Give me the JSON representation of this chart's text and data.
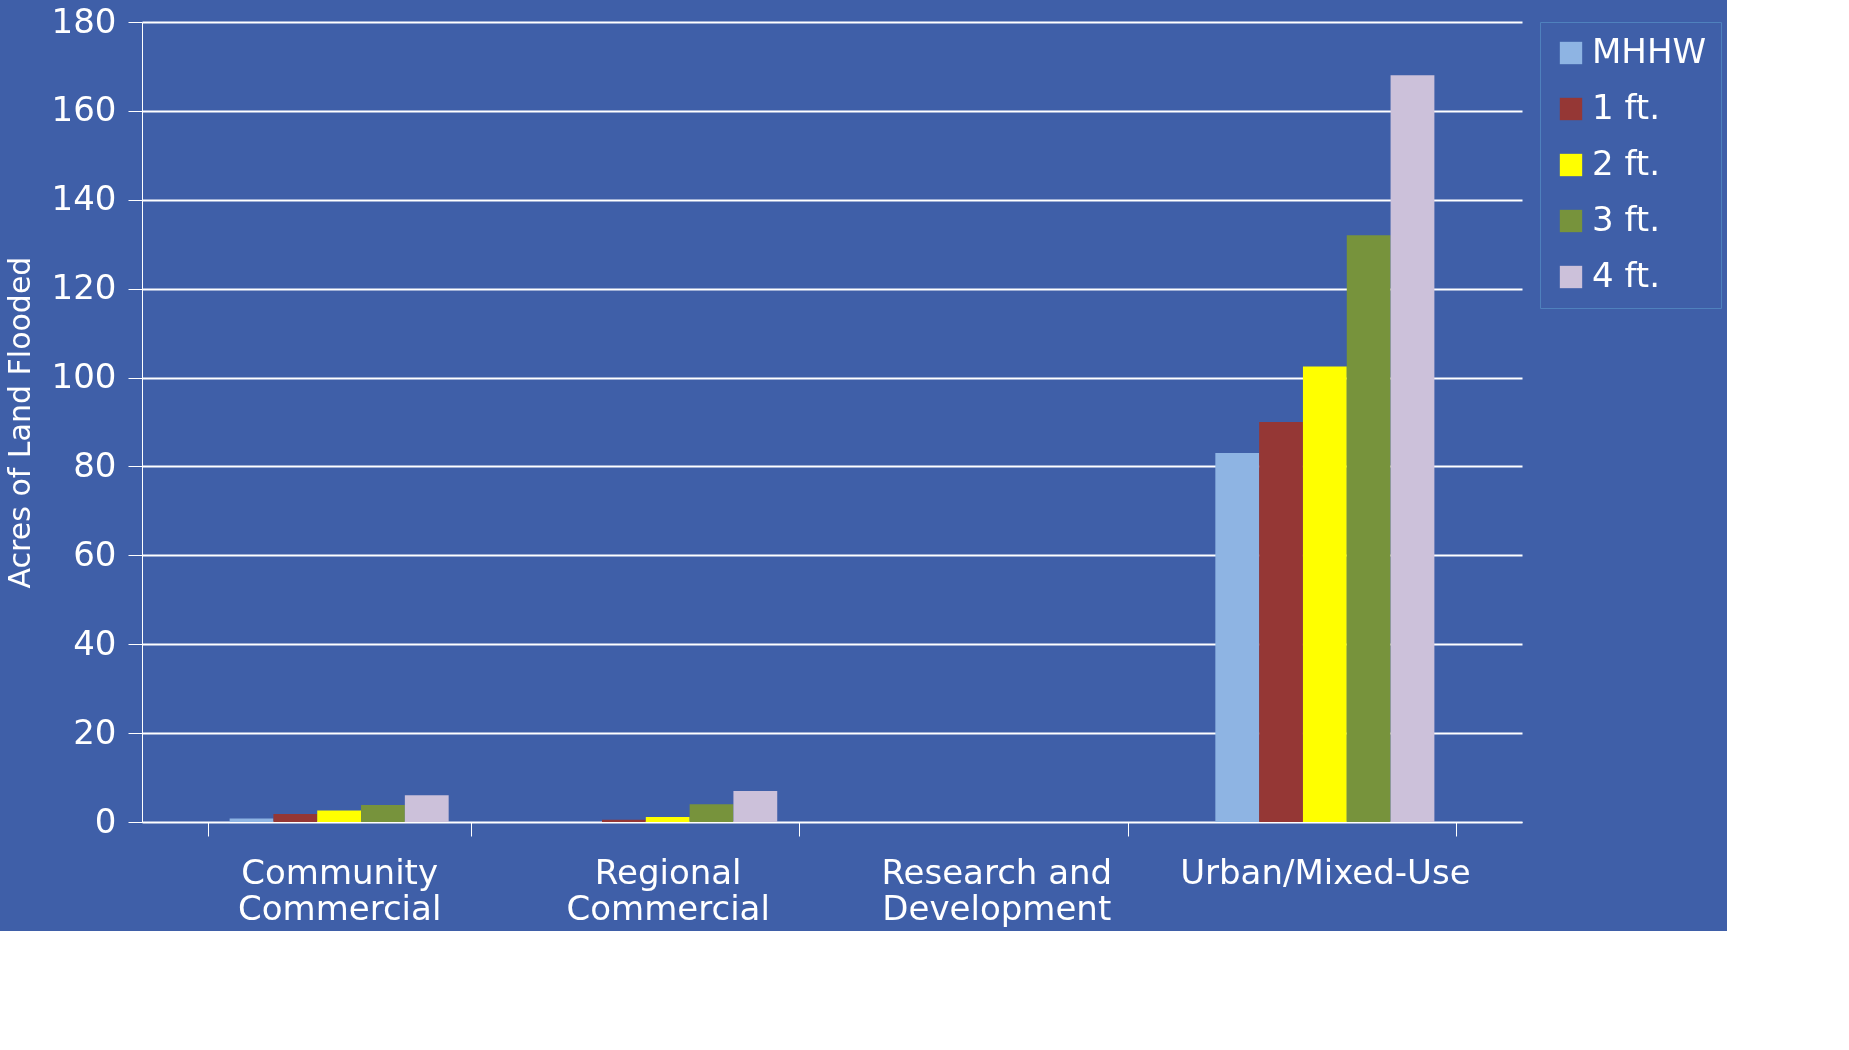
{
  "chart_data": {
    "type": "bar",
    "ylabel": "Acres of Land Flooded",
    "categories": [
      "Community Commercial",
      "Regional Commercial",
      "Research and Development",
      "Urban/Mixed-Use"
    ],
    "series": [
      {
        "name": "MHHW",
        "color": "#8eb4e3",
        "values": [
          0.8,
          null,
          0,
          83
        ]
      },
      {
        "name": "1 ft.",
        "color": "#953735",
        "values": [
          1.8,
          0.5,
          0,
          90
        ]
      },
      {
        "name": "2 ft.",
        "color": "#ffff00",
        "values": [
          2.6,
          1.1,
          0,
          102.5
        ]
      },
      {
        "name": "3 ft.",
        "color": "#77933c",
        "values": [
          3.8,
          4,
          0,
          132
        ]
      },
      {
        "name": "4 ft.",
        "color": "#ccc1da",
        "values": [
          6,
          7,
          0,
          168
        ]
      }
    ],
    "ylim": [
      0,
      180
    ],
    "yticks": [
      0,
      20,
      40,
      60,
      80,
      100,
      120,
      140,
      160,
      180
    ],
    "grid": "y",
    "legend": "right"
  }
}
